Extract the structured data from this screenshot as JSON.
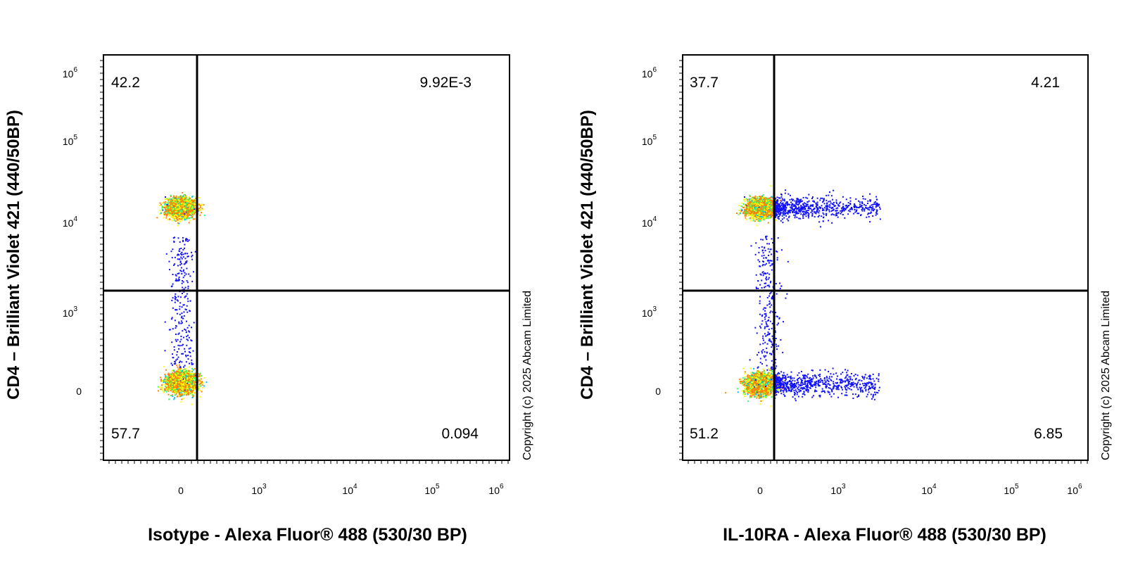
{
  "chart_data": [
    {
      "type": "scatter",
      "subtype": "flow-cytometry-density-dot-plot",
      "xlabel": "Isotype - Alexa Fluor® 488 (530/30 BP)",
      "ylabel": "CD4 – Brilliant Violet 421 (440/50BP)",
      "copyright": "Copyright (c) 2025 Abcam Limited",
      "x_ticks": [
        {
          "base": "0",
          "exp": ""
        },
        {
          "base": "10",
          "exp": "3"
        },
        {
          "base": "10",
          "exp": "4"
        },
        {
          "base": "10",
          "exp": "5"
        },
        {
          "base": "10",
          "exp": "6"
        }
      ],
      "y_ticks": [
        {
          "base": "0",
          "exp": ""
        },
        {
          "base": "10",
          "exp": "3"
        },
        {
          "base": "10",
          "exp": "4"
        },
        {
          "base": "10",
          "exp": "5"
        },
        {
          "base": "10",
          "exp": "6"
        }
      ],
      "scale": "biexponential",
      "quadrants": {
        "upper_left": "42.2",
        "upper_right": "9.92E-3",
        "lower_left": "57.7",
        "lower_right": "0.094"
      },
      "populations": [
        {
          "name": "",
          "x_center": 0,
          "y_center": 15000,
          "count": 2200,
          "spread_x": 60,
          "spread_y": 0.18
        },
        {
          "name": "",
          "x_center": 0,
          "y_center": 80,
          "count": 2600,
          "spread_x": 60,
          "spread_y": 0.2
        }
      ]
    },
    {
      "type": "scatter",
      "subtype": "flow-cytometry-density-dot-plot",
      "xlabel": "IL-10RA - Alexa Fluor® 488 (530/30 BP)",
      "ylabel": "CD4 – Brilliant Violet 421 (440/50BP)",
      "copyright": "Copyright (c) 2025 Abcam Limited",
      "x_ticks": [
        {
          "base": "0",
          "exp": ""
        },
        {
          "base": "10",
          "exp": "3"
        },
        {
          "base": "10",
          "exp": "4"
        },
        {
          "base": "10",
          "exp": "5"
        },
        {
          "base": "10",
          "exp": "6"
        }
      ],
      "y_ticks": [
        {
          "base": "0",
          "exp": ""
        },
        {
          "base": "10",
          "exp": "3"
        },
        {
          "base": "10",
          "exp": "4"
        },
        {
          "base": "10",
          "exp": "5"
        },
        {
          "base": "10",
          "exp": "6"
        }
      ],
      "scale": "biexponential",
      "quadrants": {
        "upper_left": "37.7",
        "upper_right": "4.21",
        "lower_left": "51.2",
        "lower_right": "6.85"
      },
      "populations": [
        {
          "name": "",
          "x_center": 0,
          "y_center": 15000,
          "count": 2000,
          "spread_x": 60,
          "spread_y": 0.18
        },
        {
          "name": "",
          "x_center": 0,
          "y_center": 60,
          "count": 2400,
          "spread_x": 60,
          "spread_y": 0.2
        }
      ]
    }
  ],
  "colors": {
    "density": [
      "#1010ff",
      "#00c0ff",
      "#30ff60",
      "#ffff00",
      "#ff8000",
      "#ff0000"
    ],
    "axis": "#000000",
    "gate": "#000000"
  }
}
